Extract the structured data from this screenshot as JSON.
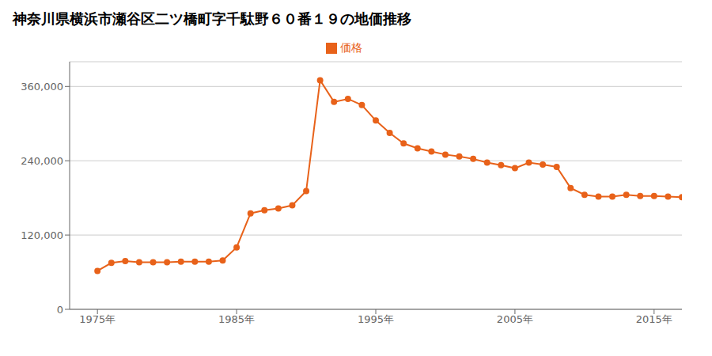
{
  "chart_data": {
    "type": "line",
    "title": "神奈川県横浜市瀬谷区二ツ橋町字千駄野６０番１９の地価推移",
    "x": [
      1975,
      1976,
      1977,
      1978,
      1979,
      1980,
      1981,
      1982,
      1983,
      1984,
      1985,
      1986,
      1987,
      1988,
      1989,
      1990,
      1991,
      1992,
      1993,
      1994,
      1995,
      1996,
      1997,
      1998,
      1999,
      2000,
      2001,
      2002,
      2003,
      2004,
      2005,
      2006,
      2007,
      2008,
      2009,
      2010,
      2011,
      2012,
      2013,
      2014,
      2015,
      2016,
      2017
    ],
    "series": [
      {
        "name": "価格",
        "color": "#E8621A",
        "marker": "circle",
        "line_style": "solid",
        "values": [
          62000,
          75000,
          78000,
          76000,
          76000,
          76000,
          77000,
          77000,
          77000,
          79000,
          100000,
          155000,
          160000,
          163000,
          168000,
          191000,
          370000,
          335000,
          340000,
          330000,
          305000,
          285000,
          268000,
          260000,
          255000,
          250000,
          247000,
          243000,
          237000,
          233000,
          228000,
          237000,
          234000,
          230000,
          196000,
          185000,
          182000,
          182000,
          185000,
          183000,
          183000,
          182000,
          181000
        ]
      }
    ],
    "xlim": [
      1973,
      2017
    ],
    "ylim": [
      0,
      400000
    ],
    "xticks": [
      {
        "value": 1975,
        "label": "1975年"
      },
      {
        "value": 1985,
        "label": "1985年"
      },
      {
        "value": 1995,
        "label": "1995年"
      },
      {
        "value": 2005,
        "label": "2005年"
      },
      {
        "value": 2015,
        "label": "2015年"
      }
    ],
    "yticks": [
      0,
      {
        "value": 120000,
        "label": "120,000"
      },
      {
        "value": 240000,
        "label": "240,000"
      },
      {
        "value": 360000,
        "label": "360,000"
      }
    ],
    "grid": true,
    "legend": "top"
  }
}
